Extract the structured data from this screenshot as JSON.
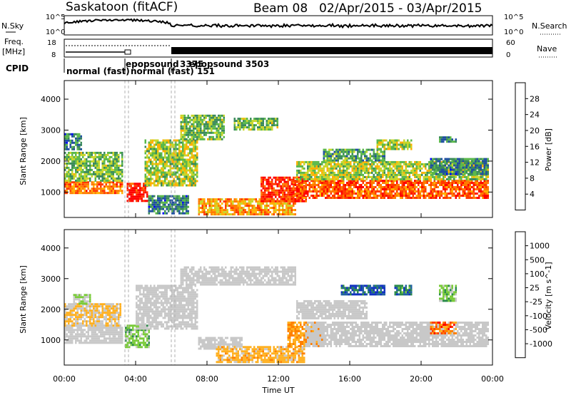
{
  "header": {
    "station": "Saskatoon (fitACF)",
    "beam": "Beam 08",
    "dates": "02/Apr/2015 - 03/Apr/2015"
  },
  "top_panels": {
    "nsky_label": "N.Sky",
    "nsearch_label": "N.Search",
    "noise_left_ticks": [
      "10^5",
      "10^0"
    ],
    "noise_right_ticks": [
      "10^5",
      "10^0"
    ],
    "freq_label": "Freq.",
    "freq_unit": "[MHz]",
    "freq_ticks": [
      "18",
      "8"
    ],
    "nave_label": "Nave",
    "nave_ticks": [
      "60",
      "0"
    ],
    "cpid_label": "CPID",
    "cpid_annotations": [
      {
        "text": "normal (fast)",
        "hour": 0.1
      },
      {
        "text": "epopsound",
        "hour": 3.4
      },
      {
        "text": "normal (fast) 151",
        "hour": 3.6
      },
      {
        "text": "3375",
        "hour": 6.2
      },
      {
        "text": "epopsound 3503",
        "hour": 6.0
      }
    ]
  },
  "colors": {
    "power_scale": [
      "#0000ff",
      "#1f4fa0",
      "#3a8a5a",
      "#5ab84a",
      "#c8d62a",
      "#ffb000",
      "#ff7a00",
      "#ff3a00",
      "#ff0000"
    ],
    "velocity_scale": [
      "#1030c0",
      "#2060a0",
      "#2a8a4a",
      "#7acb3a",
      "#c8c8c8",
      "#c8c8c8",
      "#ffb020",
      "#ff8000",
      "#ff4000",
      "#ff0000"
    ]
  },
  "chart_data": [
    {
      "type": "heatmap",
      "title": "Power",
      "xlabel": "Time UT",
      "ylabel": "Slant Range [km]",
      "x_ticks": [
        "00:00",
        "04:00",
        "08:00",
        "12:00",
        "16:00",
        "20:00",
        "00:00"
      ],
      "x_range_hours": [
        0,
        24
      ],
      "y_ticks": [
        1000,
        2000,
        3000,
        4000
      ],
      "ylim": [
        180,
        4600
      ],
      "colorbar": {
        "label": "Power [dB]",
        "ticks": [
          "4",
          "8",
          "12",
          "16",
          "20",
          "24",
          "28"
        ],
        "range": [
          0,
          30
        ]
      },
      "echo_regions": [
        {
          "t0": 0.0,
          "t1": 3.3,
          "r0": 950,
          "r1": 1350,
          "v": 22
        },
        {
          "t0": 0.0,
          "t1": 3.3,
          "r0": 1400,
          "r1": 2300,
          "v": 12
        },
        {
          "t0": 0.0,
          "t1": 1.0,
          "r0": 2400,
          "r1": 2900,
          "v": 8
        },
        {
          "t0": 3.5,
          "t1": 4.7,
          "r0": 700,
          "r1": 1300,
          "v": 28
        },
        {
          "t0": 4.5,
          "t1": 7.5,
          "r0": 1200,
          "r1": 2700,
          "v": 14
        },
        {
          "t0": 6.5,
          "t1": 9.0,
          "r0": 2700,
          "r1": 3500,
          "v": 12
        },
        {
          "t0": 4.7,
          "t1": 7.0,
          "r0": 300,
          "r1": 900,
          "v": 8
        },
        {
          "t0": 7.5,
          "t1": 13.0,
          "r0": 300,
          "r1": 800,
          "v": 20
        },
        {
          "t0": 11.0,
          "t1": 13.6,
          "r0": 700,
          "r1": 1500,
          "v": 26
        },
        {
          "t0": 9.5,
          "t1": 12.0,
          "r0": 3000,
          "r1": 3400,
          "v": 12
        },
        {
          "t0": 12.8,
          "t1": 23.8,
          "r0": 800,
          "r1": 1400,
          "v": 24
        },
        {
          "t0": 13.0,
          "t1": 23.8,
          "r0": 1400,
          "r1": 2000,
          "v": 14
        },
        {
          "t0": 14.5,
          "t1": 18.0,
          "r0": 2000,
          "r1": 2400,
          "v": 10
        },
        {
          "t0": 17.5,
          "t1": 19.5,
          "r0": 2400,
          "r1": 2700,
          "v": 14
        },
        {
          "t0": 20.5,
          "t1": 23.8,
          "r0": 1600,
          "r1": 2100,
          "v": 8
        },
        {
          "t0": 21.0,
          "t1": 22.0,
          "r0": 2600,
          "r1": 2800,
          "v": 8
        }
      ]
    },
    {
      "type": "heatmap",
      "title": "Velocity",
      "xlabel": "Time UT",
      "ylabel": "Slant Range [km]",
      "x_ticks": [
        "00:00",
        "04:00",
        "08:00",
        "12:00",
        "16:00",
        "20:00",
        "00:00"
      ],
      "x_range_hours": [
        0,
        24
      ],
      "y_ticks": [
        1000,
        2000,
        3000,
        4000
      ],
      "ylim": [
        180,
        4600
      ],
      "colorbar": {
        "label": "Velocity [m s^-1]",
        "ticks": [
          "1000",
          "500",
          "100",
          "25",
          "-25",
          "-100",
          "-500",
          "-1000"
        ],
        "range": [
          -1000,
          1000
        ]
      },
      "echo_regions": [
        {
          "t0": 0.0,
          "t1": 3.3,
          "r0": 900,
          "r1": 1500,
          "v": 0
        },
        {
          "t0": 0.0,
          "t1": 3.2,
          "r0": 1500,
          "r1": 2200,
          "v": -200
        },
        {
          "t0": 0.5,
          "t1": 1.5,
          "r0": 2200,
          "r1": 2500,
          "v": 200
        },
        {
          "t0": 3.4,
          "t1": 4.8,
          "r0": 800,
          "r1": 1500,
          "v": 300
        },
        {
          "t0": 4.0,
          "t1": 7.5,
          "r0": 1400,
          "r1": 2800,
          "v": 0
        },
        {
          "t0": 6.5,
          "t1": 13.0,
          "r0": 2800,
          "r1": 3400,
          "v": 0
        },
        {
          "t0": 7.5,
          "t1": 10.0,
          "r0": 700,
          "r1": 1100,
          "v": 100
        },
        {
          "t0": 8.5,
          "t1": 13.5,
          "r0": 300,
          "r1": 800,
          "v": -300
        },
        {
          "t0": 12.5,
          "t1": 14.5,
          "r0": 800,
          "r1": 1600,
          "v": -400
        },
        {
          "t0": 13.5,
          "t1": 23.8,
          "r0": 800,
          "r1": 1600,
          "v": 0
        },
        {
          "t0": 13.0,
          "t1": 17.0,
          "r0": 1700,
          "r1": 2300,
          "v": -100
        },
        {
          "t0": 15.5,
          "t1": 18.0,
          "r0": 2500,
          "r1": 2800,
          "v": 800
        },
        {
          "t0": 18.5,
          "t1": 19.5,
          "r0": 2500,
          "r1": 2800,
          "v": 600
        },
        {
          "t0": 20.5,
          "t1": 22.0,
          "r0": 1200,
          "r1": 1600,
          "v": -600
        },
        {
          "t0": 21.0,
          "t1": 22.0,
          "r0": 2300,
          "r1": 2800,
          "v": 300
        }
      ]
    }
  ]
}
